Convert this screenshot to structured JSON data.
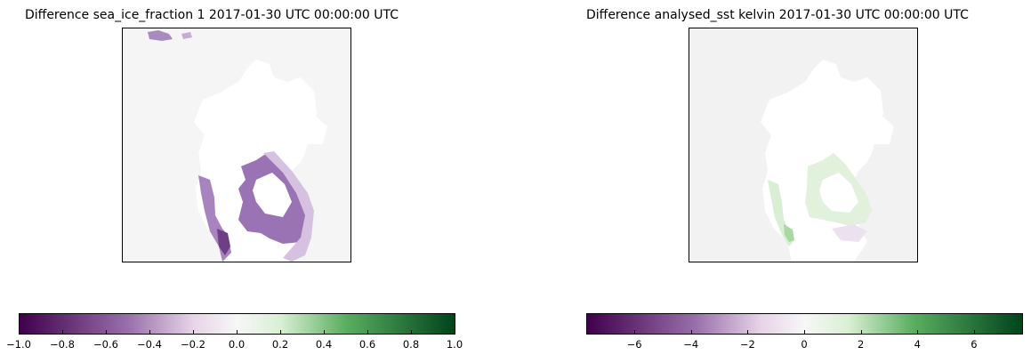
{
  "panels": [
    {
      "title": "Difference sea_ice_fraction 1 2017-01-30 UTC 00:00:00 UTC",
      "colorbar": {
        "ticks": [
          "−1.0",
          "−0.8",
          "−0.6",
          "−0.4",
          "−0.2",
          "0.0",
          "0.2",
          "0.4",
          "0.6",
          "0.8",
          "1.0"
        ],
        "range": [
          -1.0,
          1.0
        ]
      }
    },
    {
      "title": "Difference analysed_sst kelvin 2017-01-30 UTC 00:00:00 UTC",
      "colorbar": {
        "ticks": [
          "−6",
          "−4",
          "−2",
          "0",
          "2",
          "4",
          "6"
        ],
        "range": [
          -7.7,
          7.7
        ]
      }
    }
  ],
  "chart_data": [
    {
      "type": "heatmap",
      "title": "Difference sea_ice_fraction 1 2017-01-30 UTC 00:00:00 UTC",
      "colormap": "PRGn",
      "vmin": -1.0,
      "vmax": 1.0,
      "colorbar_ticks": [
        -1.0,
        -0.8,
        -0.6,
        -0.4,
        -0.2,
        0.0,
        0.2,
        0.4,
        0.6,
        0.8,
        1.0
      ],
      "notes": "Field mostly 0; negative (purple, about -0.3 to -0.6) along a coastal band and a central patch, small negative patch at top edge; white = no data/land."
    },
    {
      "type": "heatmap",
      "title": "Difference analysed_sst kelvin 2017-01-30 UTC 00:00:00 UTC",
      "colormap": "PRGn",
      "vmin": -7.7,
      "vmax": 7.7,
      "colorbar_ticks": [
        -6,
        -4,
        -2,
        0,
        2,
        4,
        6
      ],
      "notes": "Field mostly 0; small positive (light green, about +1 to +2) patches near coastal band and central region, slight negative near bottom."
    }
  ],
  "colors": {
    "purple_dark": "#40004b",
    "purple_mid": "#9970ab",
    "purple_light": "#e7d4e8",
    "neutral": "#f7f7f7",
    "green_light": "#d9f0d3",
    "green_mid": "#5aae61",
    "green_dark": "#00441b"
  }
}
